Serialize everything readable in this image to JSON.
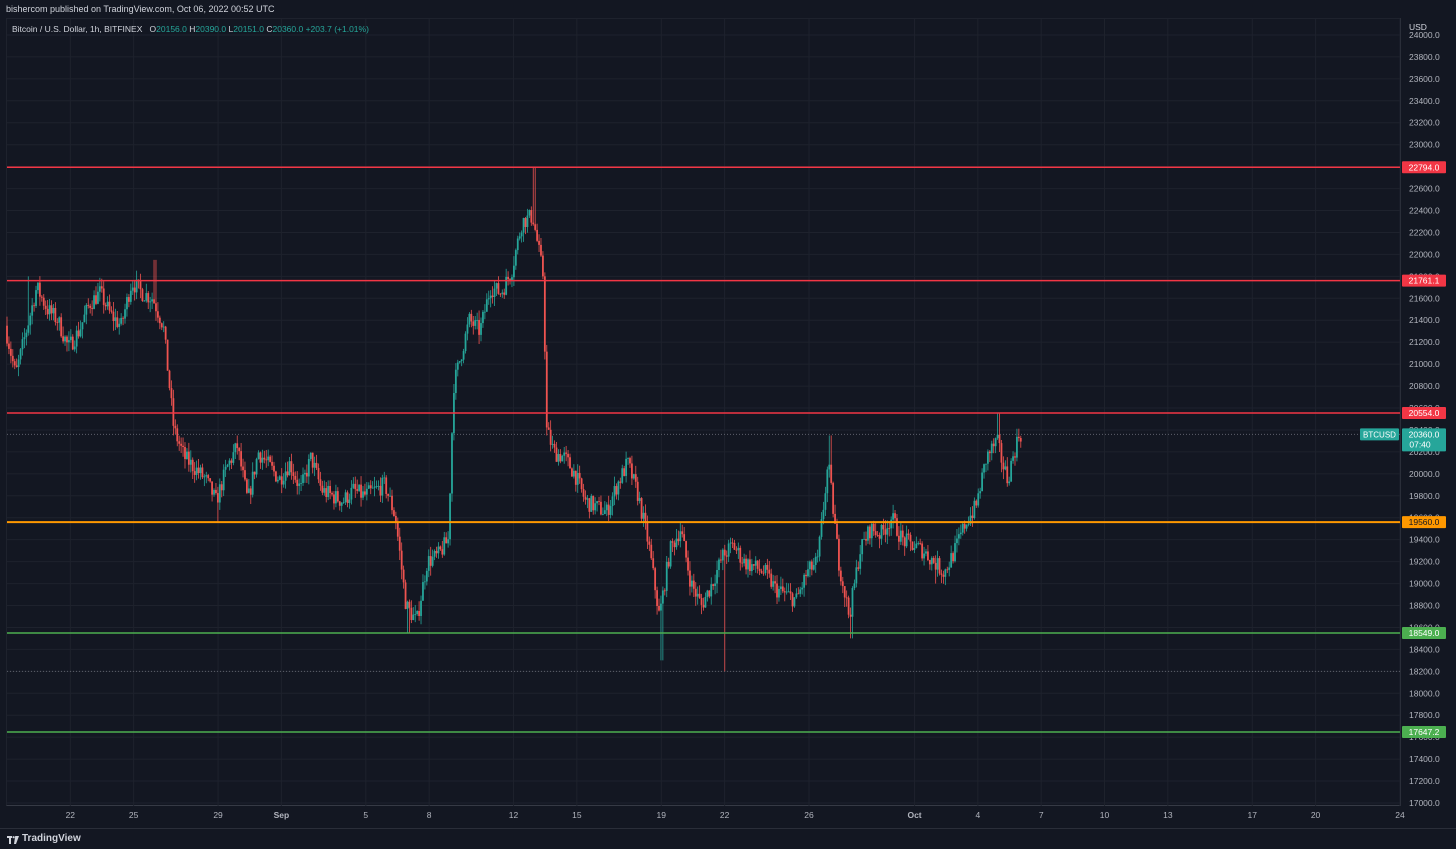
{
  "header": {
    "publisher": "bishercom published on TradingView.com, Oct 06, 2022 00:52 UTC"
  },
  "legend": {
    "symbol": "Bitcoin / U.S. Dollar, 1h, BITFINEX",
    "open_label": "O",
    "open": "20156.0",
    "high_label": "H",
    "high": "20390.0",
    "low_label": "L",
    "low": "20151.0",
    "close_label": "C",
    "close": "20360.0",
    "change": "+203.7 (+1.01%)"
  },
  "axis": {
    "currency": "USD",
    "price_ticks": [
      "17000.0",
      "17200.0",
      "17400.0",
      "17600.0",
      "17800.0",
      "18000.0",
      "18200.0",
      "18400.0",
      "18600.0",
      "18800.0",
      "19000.0",
      "19200.0",
      "19400.0",
      "19600.0",
      "19800.0",
      "20000.0",
      "20200.0",
      "20400.0",
      "20600.0",
      "20800.0",
      "21000.0",
      "21200.0",
      "21400.0",
      "21600.0",
      "21800.0",
      "22000.0",
      "22200.0",
      "22400.0",
      "22600.0",
      "22800.0",
      "23000.0",
      "23200.0",
      "23400.0",
      "23600.0",
      "23800.0",
      "24000.0"
    ],
    "time_ticks": [
      "22",
      "25",
      "29",
      "Sep",
      "5",
      "8",
      "12",
      "15",
      "19",
      "22",
      "26",
      "Oct",
      "4",
      "7",
      "10",
      "13",
      "17",
      "20",
      "24"
    ]
  },
  "footer": {
    "brand": "TradingView"
  },
  "colors": {
    "background": "#131722",
    "up": "#26a69a",
    "down": "#ef5350",
    "resistance": "#f23645",
    "support_mid": "#ff9800",
    "support": "#4caf50",
    "last_price": "#26a69a"
  },
  "chart_data": {
    "type": "candlestick",
    "symbol": "BTCUSD",
    "timeframe": "1h",
    "exchange": "BITFINEX",
    "ylim": [
      17000,
      24100
    ],
    "xlim": [
      "2022-08-19",
      "2022-10-24"
    ],
    "last_price": {
      "label": "BTCUSD",
      "value": "20360.0",
      "countdown": "07:40"
    },
    "horizontal_levels": [
      {
        "value": "22794.0",
        "kind": "resistance"
      },
      {
        "value": "21761.1",
        "kind": "resistance"
      },
      {
        "value": "20554.0",
        "kind": "resistance"
      },
      {
        "value": "19560.0",
        "kind": "support_mid"
      },
      {
        "value": "18549.0",
        "kind": "support"
      },
      {
        "value": "17647.2",
        "kind": "support"
      }
    ],
    "dotted_levels": [
      20360,
      18200
    ],
    "price_path": [
      [
        "2022-08-19",
        21350
      ],
      [
        "2022-08-19T12",
        20900
      ],
      [
        "2022-08-20",
        21300
      ],
      [
        "2022-08-20T12",
        21700
      ],
      [
        "2022-08-21",
        21500
      ],
      [
        "2022-08-21T12",
        21400
      ],
      [
        "2022-08-22",
        21150
      ],
      [
        "2022-08-22T12",
        21300
      ],
      [
        "2022-08-23",
        21550
      ],
      [
        "2022-08-23T12",
        21650
      ],
      [
        "2022-08-24",
        21450
      ],
      [
        "2022-08-24T12",
        21350
      ],
      [
        "2022-08-25",
        21750
      ],
      [
        "2022-08-25T12",
        21650
      ],
      [
        "2022-08-26",
        21600
      ],
      [
        "2022-08-26T12",
        21350
      ],
      [
        "2022-08-27",
        20400
      ],
      [
        "2022-08-27T12",
        20150
      ],
      [
        "2022-08-28",
        20050
      ],
      [
        "2022-08-28T12",
        19950
      ],
      [
        "2022-08-29",
        19750
      ],
      [
        "2022-08-29T12",
        20050
      ],
      [
        "2022-08-30",
        20250
      ],
      [
        "2022-08-30T12",
        19750
      ],
      [
        "2022-08-31",
        20200
      ],
      [
        "2022-09-01",
        19950
      ],
      [
        "2022-09-01T12",
        20100
      ],
      [
        "2022-09-02",
        19850
      ],
      [
        "2022-09-02T12",
        20150
      ],
      [
        "2022-09-03",
        19850
      ],
      [
        "2022-09-04",
        19750
      ],
      [
        "2022-09-04T12",
        19850
      ],
      [
        "2022-09-05",
        19800
      ],
      [
        "2022-09-05T12",
        19850
      ],
      [
        "2022-09-06",
        19900
      ],
      [
        "2022-09-06T12",
        19600
      ],
      [
        "2022-09-07",
        18800
      ],
      [
        "2022-09-07T12",
        18650
      ],
      [
        "2022-09-08",
        19200
      ],
      [
        "2022-09-08T12",
        19250
      ],
      [
        "2022-09-09",
        19400
      ],
      [
        "2022-09-09T06",
        20800
      ],
      [
        "2022-09-10",
        21400
      ],
      [
        "2022-09-10T12",
        21300
      ],
      [
        "2022-09-11",
        21700
      ],
      [
        "2022-09-11T12",
        21650
      ],
      [
        "2022-09-12",
        21850
      ],
      [
        "2022-09-12T12",
        22300
      ],
      [
        "2022-09-13",
        22350
      ],
      [
        "2022-09-13T12",
        21800
      ],
      [
        "2022-09-13T16",
        20400
      ],
      [
        "2022-09-14",
        20200
      ],
      [
        "2022-09-14T12",
        20150
      ],
      [
        "2022-09-15",
        20000
      ],
      [
        "2022-09-15T12",
        19750
      ],
      [
        "2022-09-16",
        19700
      ],
      [
        "2022-09-16T12",
        19650
      ],
      [
        "2022-09-17",
        19900
      ],
      [
        "2022-09-17T12",
        20100
      ],
      [
        "2022-09-18",
        19800
      ],
      [
        "2022-09-18T12",
        19350
      ],
      [
        "2022-09-19",
        18700
      ],
      [
        "2022-09-19T12",
        19300
      ],
      [
        "2022-09-20",
        19500
      ],
      [
        "2022-09-20T12",
        19000
      ],
      [
        "2022-09-21",
        18800
      ],
      [
        "2022-09-21T12",
        19000
      ],
      [
        "2022-09-22",
        19250
      ],
      [
        "2022-09-22T12",
        19350
      ],
      [
        "2022-09-23",
        19200
      ],
      [
        "2022-09-23T12",
        19150
      ],
      [
        "2022-09-24",
        19100
      ],
      [
        "2022-09-24T12",
        18950
      ],
      [
        "2022-09-25",
        18900
      ],
      [
        "2022-09-25T12",
        18850
      ],
      [
        "2022-09-26",
        19100
      ],
      [
        "2022-09-26T12",
        19200
      ],
      [
        "2022-09-27",
        20100
      ],
      [
        "2022-09-27T12",
        19200
      ],
      [
        "2022-09-28",
        18700
      ],
      [
        "2022-09-28T12",
        19300
      ],
      [
        "2022-09-29",
        19500
      ],
      [
        "2022-09-29T12",
        19450
      ],
      [
        "2022-09-30",
        19600
      ],
      [
        "2022-09-30T12",
        19400
      ],
      [
        "2022-10-01",
        19350
      ],
      [
        "2022-10-01T12",
        19300
      ],
      [
        "2022-10-02",
        19200
      ],
      [
        "2022-10-02T12",
        19100
      ],
      [
        "2022-10-03",
        19300
      ],
      [
        "2022-10-03T12",
        19550
      ],
      [
        "2022-10-04",
        19700
      ],
      [
        "2022-10-04T12",
        20150
      ],
      [
        "2022-10-05",
        20300
      ],
      [
        "2022-10-05T06",
        20100
      ],
      [
        "2022-10-05T12",
        19950
      ],
      [
        "2022-10-05T18",
        20150
      ],
      [
        "2022-10-06T01",
        20360
      ]
    ],
    "marked_extremes": [
      [
        "2022-08-20",
        21800
      ],
      [
        "2022-08-26",
        21950
      ],
      [
        "2022-08-29",
        19560
      ],
      [
        "2022-09-07",
        18550
      ],
      [
        "2022-09-13",
        22794
      ],
      [
        "2022-09-19",
        18300
      ],
      [
        "2022-09-22",
        18200
      ],
      [
        "2022-09-27",
        20350
      ],
      [
        "2022-09-28",
        18500
      ],
      [
        "2022-10-02",
        19000
      ],
      [
        "2022-10-05",
        20554
      ]
    ]
  }
}
